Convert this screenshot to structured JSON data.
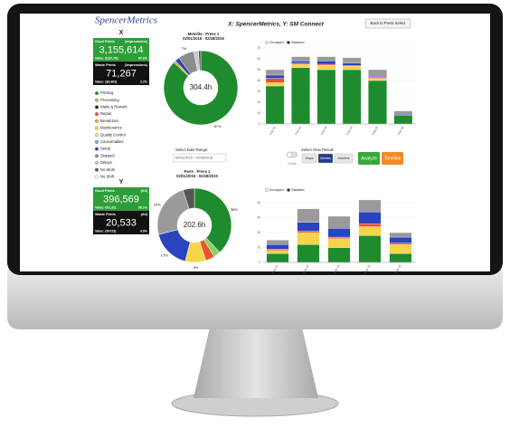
{
  "header": {
    "logo": "SpencerMetrics",
    "title": "X: SpencerMetrics, Y: SM Connect",
    "back_button": "Back to Press Select"
  },
  "panels": [
    {
      "label": "X",
      "good": {
        "title": "Good Prints",
        "unit": "(Impressions)",
        "value": "3,155,614",
        "money": "Value: $137,761",
        "pct": "87.8%"
      },
      "waste": {
        "title": "Waste Prints",
        "unit": "(Impressions)",
        "value": "71,267",
        "money": "Value: ($3,903)",
        "pct": "2.2%"
      }
    },
    {
      "label": "Y",
      "good": {
        "title": "Good Prints",
        "unit": "(All)",
        "value": "396,569",
        "money": "Value: €91,311",
        "pct": "96.1%"
      },
      "waste": {
        "title": "Waste Prints",
        "unit": "(All)",
        "value": "20,533",
        "money": "Value: (€4723)",
        "pct": "4.9%"
      }
    }
  ],
  "legend": [
    {
      "name": "Printing",
      "color": "#1e8c2e"
    },
    {
      "name": "Processing",
      "color": "#8ed16b"
    },
    {
      "name": "Waits & Rework",
      "color": "#1d1d1d"
    },
    {
      "name": "Repair",
      "color": "#e8552c"
    },
    {
      "name": "Break/Jam",
      "color": "#f6a623"
    },
    {
      "name": "Maintenance",
      "color": "#f7d34a"
    },
    {
      "name": "Quality Control",
      "color": "#f2e27a"
    },
    {
      "name": "Consumables",
      "color": "#6fa8dc"
    },
    {
      "name": "Setup",
      "color": "#2a44c0"
    },
    {
      "name": "Stopped",
      "color": "#8c8c8c"
    },
    {
      "name": "Delays",
      "color": "#c9c9c9"
    },
    {
      "name": "No Work",
      "color": "#555555"
    },
    {
      "name": "No Shift",
      "color": "#ffffff"
    }
  ],
  "controls": {
    "date_label": "Select Date Range:",
    "date_value": "02/01/2015 - 02/28/2015",
    "period_label": "Select View Period:",
    "toggle": "Shifts",
    "buttons": [
      "Days",
      "Weeks",
      "Months"
    ],
    "active_button": 1,
    "analyze": "Analyze",
    "timeline": "Timeline"
  },
  "chart_data": [
    {
      "type": "pie",
      "title": "Metolite : Press 1",
      "subtitle": "02/01/2015 - 02/28/2015",
      "center_label": "304.4h",
      "values": [
        87,
        1,
        2,
        7,
        2,
        1
      ],
      "value_labels": [
        "87%",
        null,
        null,
        "7%",
        null,
        null
      ],
      "colors": [
        "#1e8c2e",
        "#f6a623",
        "#2a44c0",
        "#8c8c8c",
        "#c9c9c9",
        "#555555"
      ]
    },
    {
      "type": "bar",
      "stacked": true,
      "view_options": [
        "Grouped",
        "Stacked"
      ],
      "selected_option": 1,
      "categories": [
        "Feb 01",
        "Feb 02",
        "Feb 03",
        "Feb 04",
        "Feb 05",
        "Feb 06"
      ],
      "ylim": [
        0,
        70
      ],
      "yticks": [
        0,
        10,
        20,
        30,
        40,
        50,
        60,
        70
      ],
      "series": [
        {
          "color": "#1e8c2e",
          "values": [
            35,
            52,
            50,
            50,
            40,
            8
          ]
        },
        {
          "color": "#f7d34a",
          "values": [
            3,
            3,
            4,
            3,
            2,
            0
          ]
        },
        {
          "color": "#e8552c",
          "values": [
            4,
            1,
            1,
            1,
            1,
            0
          ]
        },
        {
          "color": "#2a44c0",
          "values": [
            3,
            2,
            3,
            2,
            1,
            1
          ]
        },
        {
          "color": "#9a9a9a",
          "values": [
            5,
            4,
            4,
            5,
            6,
            3
          ]
        }
      ]
    },
    {
      "type": "pie",
      "title": "Parts : Press 2",
      "subtitle": "02/01/2015 - 02/28/2015",
      "center_label": "202.6h",
      "values": [
        38,
        3,
        4,
        9,
        17,
        24,
        5
      ],
      "value_labels": [
        "38%",
        null,
        null,
        "9%",
        "17%",
        "24%",
        null
      ],
      "colors": [
        "#1e8c2e",
        "#8ed16b",
        "#e8552c",
        "#f7d34a",
        "#2a44c0",
        "#9a9a9a",
        "#555555"
      ]
    },
    {
      "type": "bar",
      "stacked": true,
      "view_options": [
        "Grouped",
        "Stacked"
      ],
      "selected_option": 1,
      "categories": [
        "Feb 01",
        "Feb 02",
        "Feb 03",
        "Feb 04",
        "Feb 05"
      ],
      "ylim": [
        0,
        45
      ],
      "yticks": [
        0,
        10,
        20,
        30,
        40
      ],
      "series": [
        {
          "color": "#1e8c2e",
          "values": [
            6,
            12,
            10,
            18,
            6
          ]
        },
        {
          "color": "#f7d34a",
          "values": [
            2,
            8,
            6,
            6,
            6
          ]
        },
        {
          "color": "#e8552c",
          "values": [
            1,
            1,
            1,
            2,
            1
          ]
        },
        {
          "color": "#2a44c0",
          "values": [
            3,
            6,
            6,
            8,
            4
          ]
        },
        {
          "color": "#9a9a9a",
          "values": [
            3,
            9,
            8,
            8,
            3
          ]
        }
      ]
    }
  ]
}
